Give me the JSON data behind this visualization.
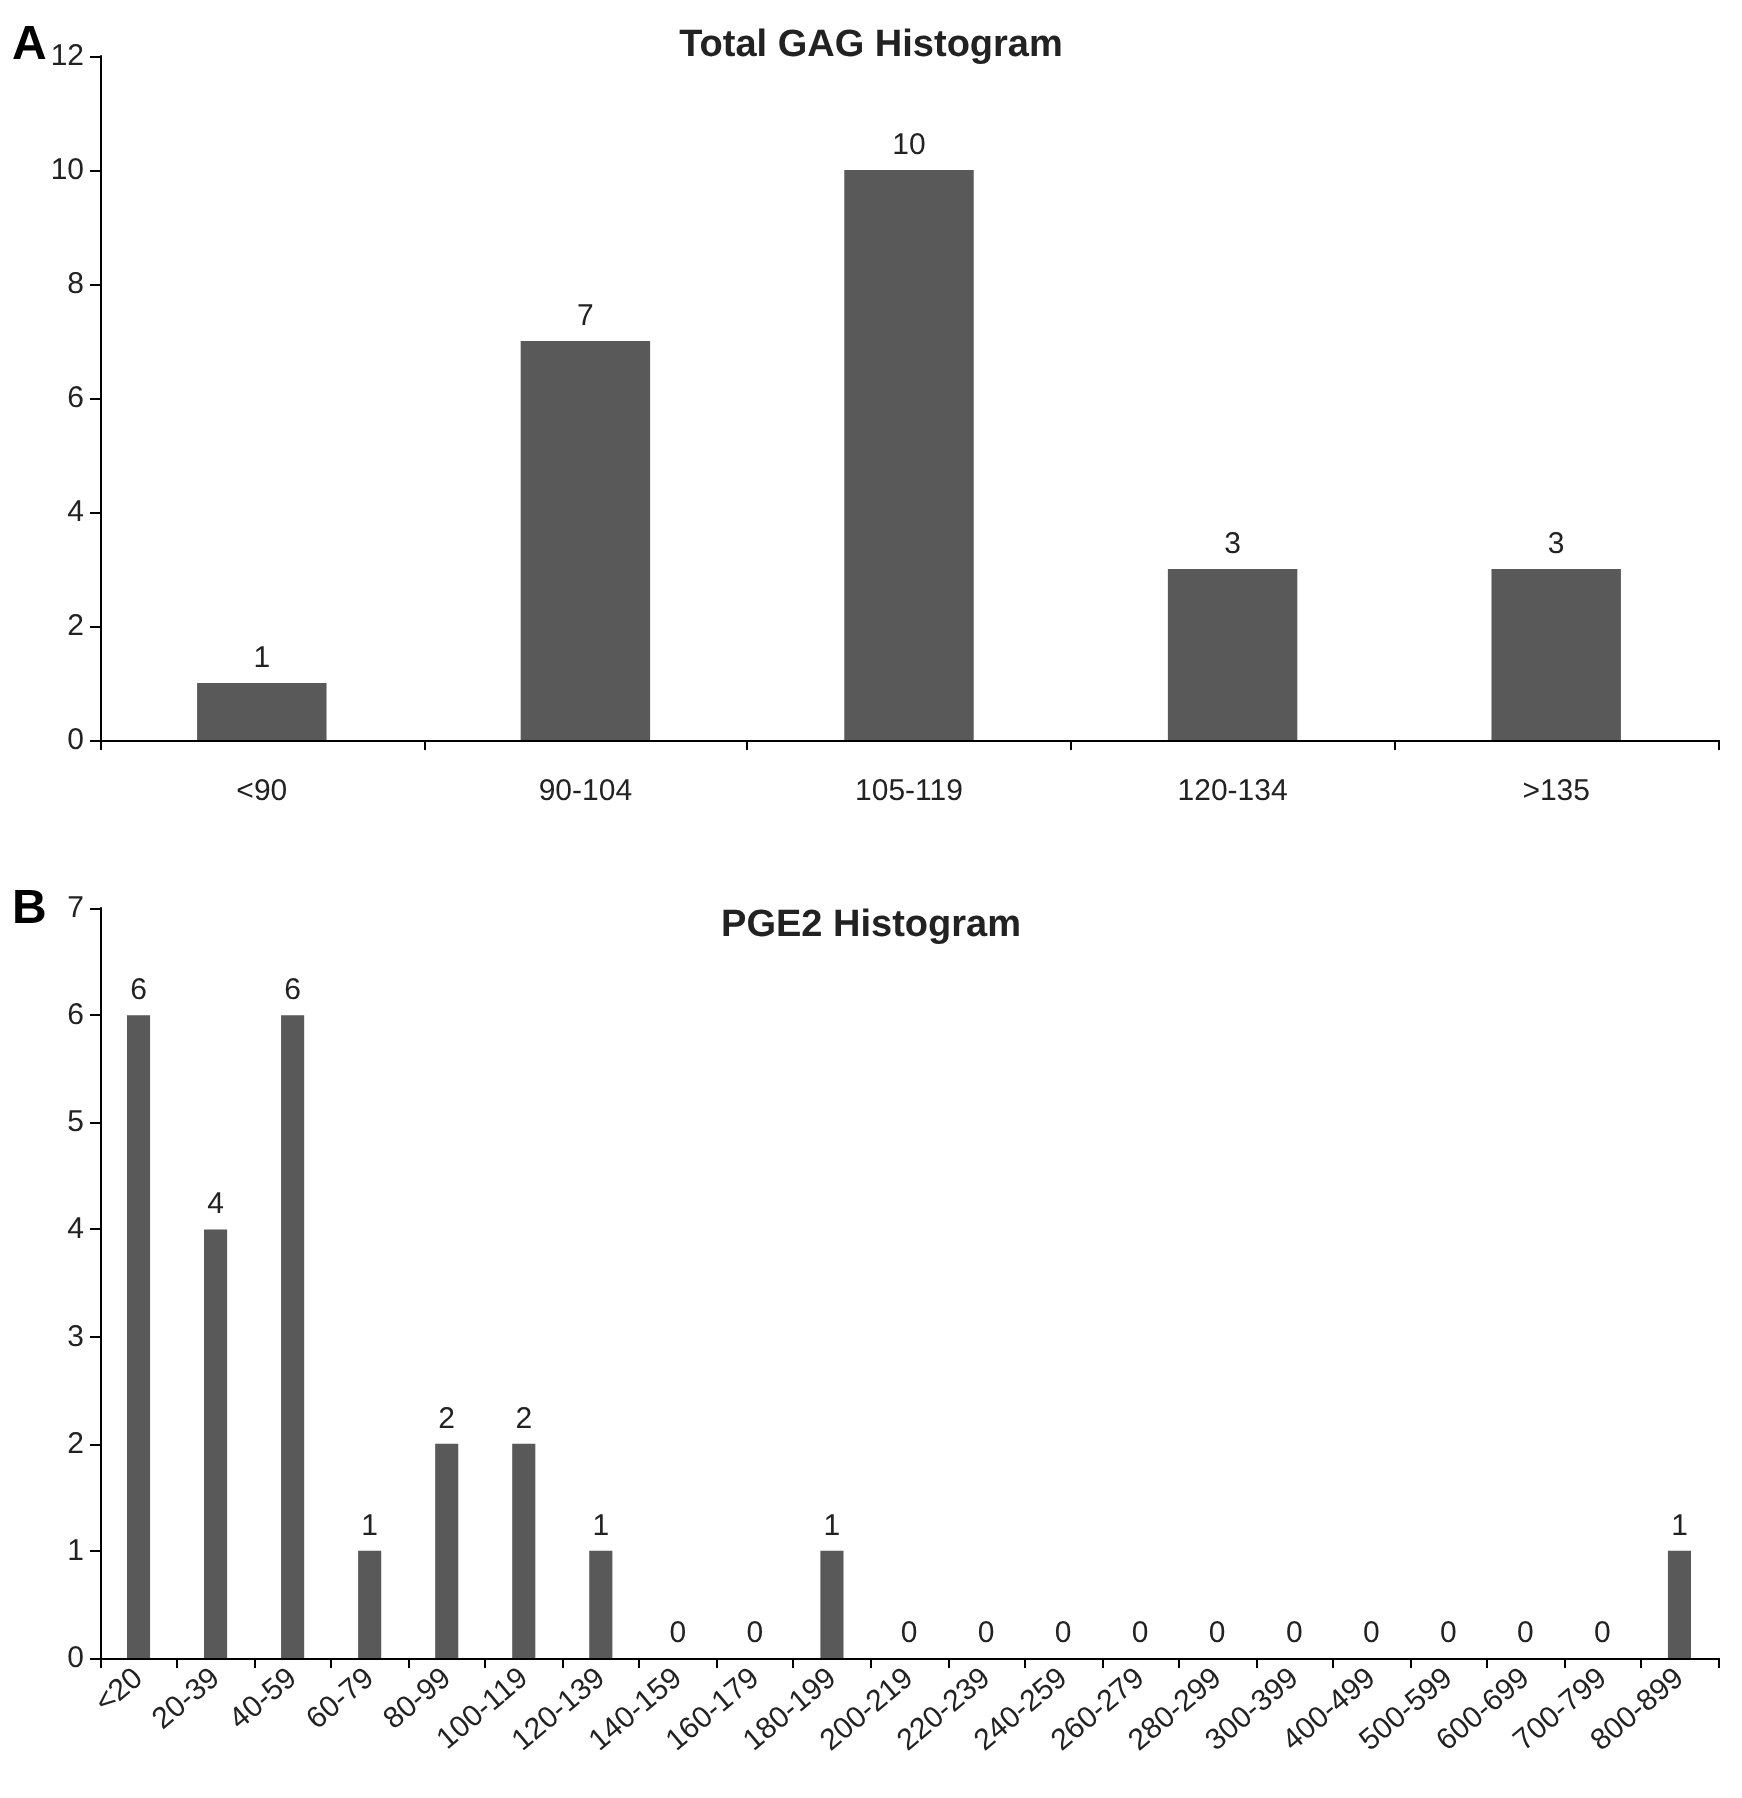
{
  "chart_data": [
    {
      "type": "bar",
      "title": "Total GAG Histogram",
      "annotations": [
        "A"
      ],
      "categories": [
        "<90",
        "90-104",
        "105-119",
        "120-134",
        ">135"
      ],
      "values": [
        1,
        7,
        10,
        3,
        3
      ],
      "color": "#595959",
      "ylim": [
        0,
        12
      ],
      "yticks": [
        0,
        2,
        4,
        6,
        8,
        10,
        12
      ],
      "grid": false,
      "data_labels": true
    },
    {
      "type": "bar",
      "title": "PGE2 Histogram",
      "annotations": [
        "B"
      ],
      "categories": [
        "<20",
        "20-39",
        "40-59",
        "60-79",
        "80-99",
        "100-119",
        "120-139",
        "140-159",
        "160-179",
        "180-199",
        "200-219",
        "220-239",
        "240-259",
        "260-279",
        "280-299",
        "300-399",
        "400-499",
        "500-599",
        "600-699",
        "700-799",
        "800-899"
      ],
      "values": [
        6,
        4,
        6,
        1,
        2,
        2,
        1,
        0,
        0,
        1,
        0,
        0,
        0,
        0,
        0,
        0,
        0,
        0,
        0,
        0,
        1
      ],
      "color": "#595959",
      "ylim": [
        0,
        7
      ],
      "yticks": [
        0,
        1,
        2,
        3,
        4,
        5,
        6,
        7
      ],
      "grid": false,
      "data_labels": true
    }
  ]
}
